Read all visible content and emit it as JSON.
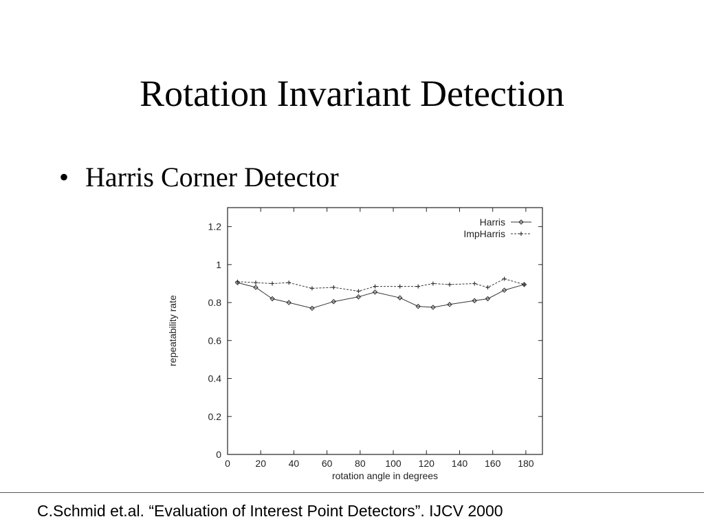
{
  "slide": {
    "title": "Rotation Invariant Detection",
    "bullet": "Harris Corner Detector",
    "footer": "C.Schmid et.al. “Evaluation of Interest Point Detectors”. IJCV 2000"
  },
  "chart_data": {
    "type": "line",
    "title": "",
    "xlabel": "rotation angle in degrees",
    "ylabel": "repeatability rate",
    "xlim": [
      0,
      190
    ],
    "ylim": [
      0,
      1.3
    ],
    "xticks": [
      0,
      20,
      40,
      60,
      80,
      100,
      120,
      140,
      160,
      180
    ],
    "yticks": [
      0,
      0.2,
      0.4,
      0.6,
      0.8,
      1,
      1.2
    ],
    "ytick_labels": [
      "0",
      "0.2",
      "0.4",
      "0.6",
      "0.8",
      "1",
      "1.2"
    ],
    "legend_position": "top-right",
    "grid": false,
    "series": [
      {
        "name": "Harris",
        "style": "solid",
        "marker": "diamond",
        "color": "#333333",
        "x": [
          6,
          17,
          27,
          37,
          51,
          64,
          79,
          89,
          104,
          115,
          124,
          134,
          149,
          157,
          167,
          179
        ],
        "y": [
          0.905,
          0.88,
          0.82,
          0.8,
          0.77,
          0.805,
          0.83,
          0.855,
          0.825,
          0.78,
          0.775,
          0.79,
          0.81,
          0.82,
          0.865,
          0.895
        ]
      },
      {
        "name": "ImpHarris",
        "style": "dashed",
        "marker": "plus",
        "color": "#333333",
        "x": [
          6,
          17,
          27,
          37,
          51,
          64,
          79,
          89,
          104,
          115,
          124,
          134,
          149,
          157,
          167,
          179
        ],
        "y": [
          0.91,
          0.905,
          0.9,
          0.905,
          0.875,
          0.88,
          0.86,
          0.885,
          0.885,
          0.885,
          0.9,
          0.895,
          0.9,
          0.88,
          0.925,
          0.895
        ]
      }
    ]
  }
}
